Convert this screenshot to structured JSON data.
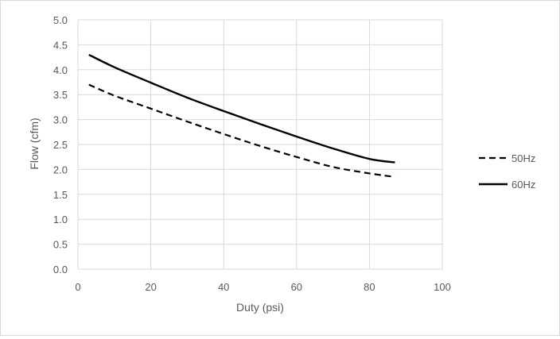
{
  "chart_data": {
    "type": "line",
    "title": "",
    "xlabel": "Duty (psi)",
    "ylabel": "Flow (cfm)",
    "xlim": [
      0,
      100
    ],
    "ylim": [
      0,
      5
    ],
    "x_ticks": [
      "0",
      "20",
      "40",
      "60",
      "80",
      "100"
    ],
    "y_ticks": [
      "0.0",
      "0.5",
      "1.0",
      "1.5",
      "2.0",
      "2.5",
      "3.0",
      "3.5",
      "4.0",
      "4.5",
      "5.0"
    ],
    "grid": true,
    "legend_position": "right",
    "series": [
      {
        "name": "50Hz",
        "style": "dashed",
        "color": "#000000",
        "x": [
          3,
          10,
          20,
          30,
          40,
          50,
          60,
          70,
          80,
          87
        ],
        "y": [
          3.7,
          3.48,
          3.22,
          2.96,
          2.71,
          2.47,
          2.25,
          2.05,
          1.92,
          1.85
        ]
      },
      {
        "name": "60Hz",
        "style": "solid",
        "color": "#000000",
        "x": [
          3,
          10,
          20,
          30,
          40,
          50,
          60,
          70,
          80,
          87
        ],
        "y": [
          4.3,
          4.05,
          3.74,
          3.44,
          3.17,
          2.91,
          2.66,
          2.42,
          2.21,
          2.14
        ]
      }
    ]
  }
}
